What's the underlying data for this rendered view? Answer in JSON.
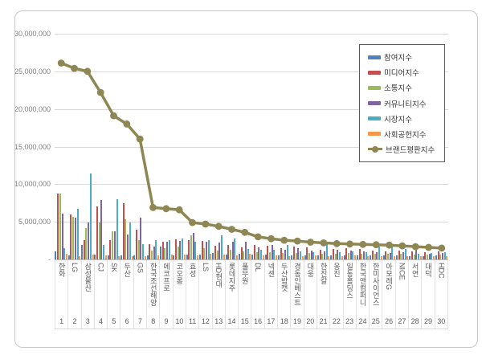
{
  "chart": {
    "background": "#ffffff",
    "frame_border_color": "#c9c9c9",
    "gridline_color": "#d9d9d9",
    "yaxis_text_color": "#7f7f7f",
    "category_text_color": "#595959",
    "legend_border_color": "#595959"
  },
  "chart_data": {
    "type": "bar",
    "title": "",
    "xlabel": "",
    "ylabel": "",
    "ylim": [
      0,
      30000000
    ],
    "ytick_interval": 5000000,
    "ytick_labels": [
      "30,000,000",
      "25,000,000",
      "20,000,000",
      "15,000,000",
      "10,000,000",
      "5,000,000",
      "-"
    ],
    "grid": "horizontal",
    "legend_position": "upper-right",
    "categories": [
      "한화",
      "LG",
      "삼성물산",
      "CJ",
      "SK",
      "두산",
      "GS",
      "한국조선해양",
      "에코프로",
      "코오롱",
      "효성",
      "LS",
      "HD현대",
      "롯데지주",
      "풀무원",
      "DL",
      "넥센",
      "두산밥캣",
      "경동인베스트",
      "대웅",
      "한진칼",
      "웅진",
      "일동홀딩스",
      "한국앤컴퍼니",
      "한미사이언스",
      "아모레G",
      "NICE",
      "서연",
      "대덕",
      "HDC"
    ],
    "category_numbers": [
      "1",
      "2",
      "3",
      "4",
      "5",
      "6",
      "7",
      "8",
      "9",
      "10",
      "11",
      "12",
      "13",
      "14",
      "15",
      "16",
      "17",
      "18",
      "19",
      "20",
      "21",
      "22",
      "23",
      "24",
      "25",
      "26",
      "27",
      "28",
      "29",
      "30"
    ],
    "series": [
      {
        "name": "참여지수",
        "type": "bar",
        "color": "#4F81BD",
        "values": [
          1100000,
          500000,
          1900000,
          600000,
          500000,
          500000,
          500000,
          500000,
          1700000,
          500000,
          600000,
          600000,
          900000,
          600000,
          700000,
          600000,
          600000,
          500000,
          500000,
          500000,
          500000,
          500000,
          500000,
          500000,
          500000,
          500000,
          500000,
          400000,
          400000,
          500000
        ]
      },
      {
        "name": "미디어지수",
        "type": "bar",
        "color": "#C0504D",
        "values": [
          8800000,
          6000000,
          2600000,
          7100000,
          2600000,
          7500000,
          3900000,
          2000000,
          2300000,
          2700000,
          2600000,
          2500000,
          1800000,
          1900000,
          1600000,
          1900000,
          1800000,
          1500000,
          1700000,
          1600000,
          1300000,
          1400000,
          1500000,
          1400000,
          1200000,
          1100000,
          1200000,
          1100000,
          1000000,
          1100000
        ]
      },
      {
        "name": "소통지수",
        "type": "bar",
        "color": "#9BBB59",
        "values": [
          8800000,
          5700000,
          4200000,
          4900000,
          3700000,
          5300000,
          2600000,
          1200000,
          1500000,
          1700000,
          3200000,
          1500000,
          1200000,
          1300000,
          1100000,
          1000000,
          1000000,
          900000,
          900000,
          900000,
          800000,
          800000,
          900000,
          800000,
          700000,
          700000,
          700000,
          600000,
          600000,
          600000
        ]
      },
      {
        "name": "커뮤니티지수",
        "type": "bar",
        "color": "#8064A2",
        "values": [
          6100000,
          5600000,
          4900000,
          7900000,
          3700000,
          3300000,
          5500000,
          1700000,
          2400000,
          2500000,
          3500000,
          2300000,
          2200000,
          2300000,
          2400000,
          1600000,
          1900000,
          1300000,
          1500000,
          1200000,
          1100000,
          1300000,
          1200000,
          1100000,
          1000000,
          900000,
          1000000,
          1300000,
          800000,
          900000
        ]
      },
      {
        "name": "시장지수",
        "type": "bar",
        "color": "#4BACC6",
        "values": [
          1500000,
          6700000,
          11400000,
          1900000,
          8000000,
          4900000,
          2000000,
          2600000,
          2600000,
          2800000,
          2300000,
          2600000,
          3200000,
          2800000,
          1400000,
          1300000,
          1300000,
          1900000,
          1100000,
          1000000,
          2000000,
          1000000,
          1100000,
          1000000,
          1700000,
          1700000,
          1400000,
          800000,
          900000,
          1000000
        ]
      },
      {
        "name": "사회공헌지수",
        "type": "bar",
        "color": "#F79646",
        "values": [
          700000,
          400000,
          600000,
          500000,
          400000,
          400000,
          400000,
          500000,
          600000,
          600000,
          500000,
          700000,
          600000,
          500000,
          800000,
          500000,
          500000,
          400000,
          400000,
          500000,
          400000,
          400000,
          500000,
          400000,
          400000,
          400000,
          400000,
          400000,
          400000,
          400000
        ]
      },
      {
        "name": "브랜드평판지수",
        "type": "line",
        "color": "#8E8653",
        "values": [
          26100000,
          25400000,
          25000000,
          22200000,
          19100000,
          18000000,
          16000000,
          6900000,
          6750000,
          6600000,
          4900000,
          4700000,
          4400000,
          4000000,
          3600000,
          3000000,
          2750000,
          2550000,
          2450000,
          2300000,
          2200000,
          2100000,
          2050000,
          2000000,
          1950000,
          1900000,
          1800000,
          1700000,
          1600000,
          1500000
        ]
      }
    ]
  }
}
